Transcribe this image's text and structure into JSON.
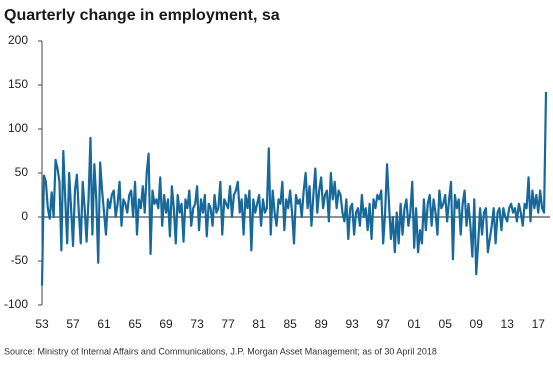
{
  "chart_data": {
    "type": "line",
    "title": "Quarterly change in employment, sa",
    "source": "Source: Ministry of Internal Affairs and Communications, J.P. Morgan Asset Management; as of 30 April 2018",
    "categories": [
      "53",
      null,
      null,
      null,
      null,
      null,
      null,
      null,
      null,
      null,
      null,
      null,
      null,
      null,
      null,
      null,
      "57",
      null,
      null,
      null,
      null,
      null,
      null,
      null,
      null,
      null,
      null,
      null,
      null,
      null,
      null,
      null,
      "61",
      null,
      null,
      null,
      null,
      null,
      null,
      null,
      null,
      null,
      null,
      null,
      null,
      null,
      null,
      null,
      "65",
      null,
      null,
      null,
      null,
      null,
      null,
      null,
      null,
      null,
      null,
      null,
      null,
      null,
      null,
      null,
      "69",
      null,
      null,
      null,
      null,
      null,
      null,
      null,
      null,
      null,
      null,
      null,
      null,
      null,
      null,
      null,
      "73",
      null,
      null,
      null,
      null,
      null,
      null,
      null,
      null,
      null,
      null,
      null,
      null,
      null,
      null,
      null,
      "77",
      null,
      null,
      null,
      null,
      null,
      null,
      null,
      null,
      null,
      null,
      null,
      null,
      null,
      null,
      null,
      "81",
      null,
      null,
      null,
      null,
      null,
      null,
      null,
      null,
      null,
      null,
      null,
      null,
      null,
      null,
      null,
      "85",
      null,
      null,
      null,
      null,
      null,
      null,
      null,
      null,
      null,
      null,
      null,
      null,
      null,
      null,
      null,
      "89",
      null,
      null,
      null,
      null,
      null,
      null,
      null,
      null,
      null,
      null,
      null,
      null,
      null,
      null,
      null,
      "93",
      null,
      null,
      null,
      null,
      null,
      null,
      null,
      null,
      null,
      null,
      null,
      null,
      null,
      null,
      null,
      "97",
      null,
      null,
      null,
      null,
      null,
      null,
      null,
      null,
      null,
      null,
      null,
      null,
      null,
      null,
      null,
      "01",
      null,
      null,
      null,
      null,
      null,
      null,
      null,
      null,
      null,
      null,
      null,
      null,
      null,
      null,
      null,
      "05",
      null,
      null,
      null,
      null,
      null,
      null,
      null,
      null,
      null,
      null,
      null,
      null,
      null,
      null,
      null,
      "09",
      null,
      null,
      null,
      null,
      null,
      null,
      null,
      null,
      null,
      null,
      null,
      null,
      null,
      null,
      null,
      "13",
      null,
      null,
      null,
      null,
      null,
      null,
      null,
      null,
      null,
      null,
      null,
      null,
      null,
      null,
      null,
      "17",
      null,
      null,
      null,
      null
    ],
    "values": [
      -78,
      47,
      40,
      10,
      -2,
      28,
      0,
      65,
      55,
      40,
      -38,
      75,
      20,
      -30,
      50,
      10,
      -33,
      30,
      48,
      5,
      -30,
      40,
      10,
      -28,
      20,
      90,
      -20,
      60,
      20,
      -52,
      62,
      30,
      5,
      -20,
      20,
      10,
      25,
      30,
      0,
      15,
      40,
      -10,
      20,
      15,
      5,
      25,
      30,
      0,
      40,
      -20,
      20,
      10,
      35,
      5,
      50,
      72,
      -42,
      30,
      15,
      20,
      10,
      45,
      -10,
      25,
      5,
      20,
      -22,
      35,
      10,
      -30,
      25,
      5,
      15,
      -28,
      20,
      10,
      30,
      -10,
      10,
      15,
      35,
      -15,
      20,
      5,
      25,
      -22,
      15,
      10,
      -10,
      25,
      5,
      10,
      40,
      -20,
      20,
      15,
      10,
      35,
      0,
      25,
      30,
      40,
      5,
      20,
      -20,
      25,
      10,
      30,
      -38,
      20,
      5,
      15,
      25,
      -10,
      20,
      5,
      10,
      78,
      -20,
      30,
      5,
      -10,
      20,
      15,
      40,
      -15,
      20,
      10,
      30,
      5,
      -30,
      25,
      15,
      20,
      0,
      30,
      50,
      10,
      35,
      -10,
      25,
      55,
      5,
      30,
      45,
      10,
      25,
      30,
      -5,
      50,
      20,
      40,
      10,
      30,
      25,
      5,
      -5,
      20,
      -25,
      10,
      15,
      -20,
      5,
      10,
      -10,
      25,
      0,
      10,
      -15,
      15,
      -25,
      20,
      10,
      25,
      20,
      30,
      -30,
      5,
      60,
      15,
      -25,
      0,
      -40,
      5,
      -30,
      15,
      -20,
      10,
      20,
      -10,
      5,
      40,
      -35,
      10,
      -40,
      -15,
      -30,
      20,
      -15,
      15,
      25,
      -10,
      20,
      5,
      -20,
      30,
      10,
      15,
      25,
      -5,
      20,
      40,
      -48,
      25,
      10,
      20,
      -20,
      15,
      30,
      -10,
      15,
      -10,
      -45,
      20,
      -65,
      -30,
      10,
      -20,
      5,
      10,
      -40,
      -25,
      -10,
      10,
      -30,
      5,
      10,
      -15,
      10,
      0,
      -5,
      10,
      15,
      5,
      10,
      -5,
      15,
      5,
      -10,
      15,
      10,
      45,
      -5,
      30,
      10,
      25,
      5,
      30,
      10,
      5,
      142
    ],
    "color": "#17699b",
    "ylim": [
      -100,
      200
    ],
    "yticks": [
      -100,
      -50,
      0,
      50,
      100,
      150,
      200
    ]
  }
}
